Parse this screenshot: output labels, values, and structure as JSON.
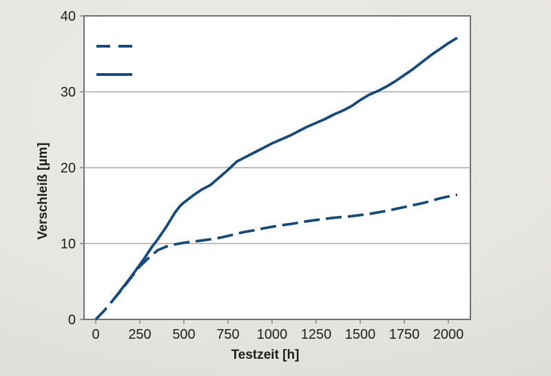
{
  "colors": {
    "line": "#164a7d",
    "grid": "#999996",
    "plot_border": "#72716f",
    "plot_background": "#ffffff",
    "text": "#1d1d1b",
    "page_background": "#e6e5e1"
  },
  "chart_data": {
    "type": "line",
    "title": "",
    "xlabel": "Testzeit [h]",
    "ylabel": "Verschleiß [µm]",
    "xlim": [
      0,
      2000
    ],
    "ylim": [
      0,
      40
    ],
    "x_ticks": [
      0,
      250,
      500,
      750,
      1000,
      1250,
      1500,
      1750,
      2000
    ],
    "y_ticks": [
      0,
      10,
      20,
      30,
      40
    ],
    "grid": "horizontal-only",
    "legend": {
      "position": "top-left-inside",
      "has_text_labels": false,
      "entries": [
        {
          "series": "dashed",
          "style": "dashed"
        },
        {
          "series": "solid",
          "style": "solid"
        }
      ]
    },
    "series": [
      {
        "name": "solid",
        "style": "solid",
        "color": "#164a7d",
        "points": [
          [
            100,
            2.6
          ],
          [
            150,
            4.1
          ],
          [
            200,
            5.6
          ],
          [
            250,
            7.2
          ],
          [
            280,
            8.2
          ],
          [
            320,
            9.6
          ],
          [
            350,
            10.5
          ],
          [
            400,
            12.2
          ],
          [
            450,
            14.1
          ],
          [
            480,
            15.0
          ],
          [
            500,
            15.4
          ],
          [
            550,
            16.3
          ],
          [
            600,
            17.1
          ],
          [
            650,
            17.7
          ],
          [
            700,
            18.7
          ],
          [
            750,
            19.7
          ],
          [
            800,
            20.8
          ],
          [
            850,
            21.4
          ],
          [
            900,
            22.0
          ],
          [
            950,
            22.6
          ],
          [
            1000,
            23.2
          ],
          [
            1050,
            23.7
          ],
          [
            1100,
            24.2
          ],
          [
            1150,
            24.8
          ],
          [
            1200,
            25.4
          ],
          [
            1250,
            25.9
          ],
          [
            1300,
            26.4
          ],
          [
            1350,
            27.0
          ],
          [
            1400,
            27.5
          ],
          [
            1450,
            28.1
          ],
          [
            1500,
            28.9
          ],
          [
            1550,
            29.6
          ],
          [
            1600,
            30.1
          ],
          [
            1650,
            30.7
          ],
          [
            1700,
            31.4
          ],
          [
            1750,
            32.2
          ],
          [
            1800,
            33.0
          ],
          [
            1850,
            33.9
          ],
          [
            1900,
            34.8
          ],
          [
            1950,
            35.6
          ],
          [
            2000,
            36.4
          ],
          [
            2050,
            37.1
          ]
        ]
      },
      {
        "name": "dashed",
        "style": "dashed",
        "color": "#164a7d",
        "points": [
          [
            0,
            0
          ],
          [
            50,
            1.2
          ],
          [
            100,
            2.6
          ],
          [
            150,
            4.0
          ],
          [
            200,
            5.5
          ],
          [
            250,
            7.0
          ],
          [
            300,
            8.1
          ],
          [
            350,
            9.1
          ],
          [
            400,
            9.6
          ],
          [
            450,
            9.9
          ],
          [
            500,
            10.1
          ],
          [
            550,
            10.25
          ],
          [
            600,
            10.4
          ],
          [
            650,
            10.55
          ],
          [
            700,
            10.75
          ],
          [
            750,
            11.0
          ],
          [
            800,
            11.3
          ],
          [
            850,
            11.55
          ],
          [
            900,
            11.75
          ],
          [
            950,
            12.0
          ],
          [
            1000,
            12.2
          ],
          [
            1050,
            12.4
          ],
          [
            1100,
            12.55
          ],
          [
            1150,
            12.75
          ],
          [
            1200,
            12.95
          ],
          [
            1250,
            13.1
          ],
          [
            1300,
            13.25
          ],
          [
            1350,
            13.4
          ],
          [
            1400,
            13.5
          ],
          [
            1450,
            13.6
          ],
          [
            1500,
            13.75
          ],
          [
            1550,
            13.9
          ],
          [
            1600,
            14.1
          ],
          [
            1650,
            14.3
          ],
          [
            1700,
            14.55
          ],
          [
            1750,
            14.8
          ],
          [
            1800,
            15.05
          ],
          [
            1850,
            15.3
          ],
          [
            1900,
            15.6
          ],
          [
            1950,
            15.95
          ],
          [
            2000,
            16.2
          ],
          [
            2050,
            16.45
          ]
        ]
      }
    ]
  }
}
